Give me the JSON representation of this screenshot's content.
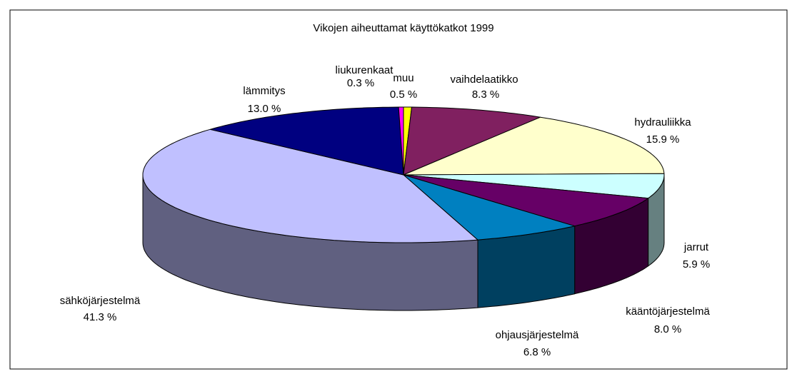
{
  "chart_data": {
    "type": "pie3d",
    "title": "Vikojen aiheuttamat käyttökatkot 1999",
    "categories": [
      "muu",
      "vaihdelaatikko",
      "hydrauliikka",
      "jarrut",
      "kääntöjärjestelmä",
      "ohjausjärjestelmä",
      "sähköjärjestelmä",
      "lämmitys",
      "liukurenkaat"
    ],
    "values": [
      0.5,
      8.3,
      15.9,
      5.9,
      8.0,
      6.8,
      41.3,
      13.0,
      0.3
    ],
    "value_labels": [
      "0.5 %",
      "8.3 %",
      "15.9 %",
      "5.9 %",
      "8.0 %",
      "6.8 %",
      "41.3 %",
      "13.0 %",
      "0.3 %"
    ],
    "colors": [
      "#ffff00",
      "#802060",
      "#ffffcc",
      "#ccffff",
      "#660066",
      "#0080c0",
      "#c0c0ff",
      "#000080",
      "#ff00ff"
    ]
  }
}
